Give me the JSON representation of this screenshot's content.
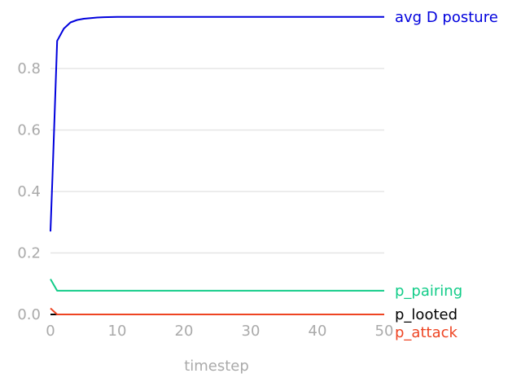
{
  "chart_data": {
    "type": "line",
    "title": "",
    "xlabel": "timestep",
    "ylabel": "",
    "xlim": [
      0,
      50
    ],
    "ylim": [
      0,
      0.97
    ],
    "xticks": [
      "0",
      "10",
      "20",
      "30",
      "40",
      "50"
    ],
    "yticks": [
      "0.0",
      "0.2",
      "0.4",
      "0.6",
      "0.8"
    ],
    "grid": "horizontal",
    "legend": "labels at right end of each line",
    "series": [
      {
        "name": "avg D posture",
        "color": "#0000dd",
        "x": [
          0,
          0.3,
          1,
          2,
          3,
          4,
          5,
          6,
          7,
          8,
          10,
          15,
          20,
          30,
          40,
          50
        ],
        "y": [
          0.27,
          0.45,
          0.89,
          0.93,
          0.95,
          0.958,
          0.962,
          0.964,
          0.966,
          0.967,
          0.968,
          0.968,
          0.968,
          0.968,
          0.968,
          0.968
        ]
      },
      {
        "name": "p_pairing",
        "color": "#11cc88",
        "x": [
          0,
          1,
          2,
          5,
          10,
          20,
          30,
          40,
          50
        ],
        "y": [
          0.115,
          0.077,
          0.077,
          0.077,
          0.077,
          0.077,
          0.077,
          0.077,
          0.077
        ]
      },
      {
        "name": "p_looted",
        "color": "#000000",
        "x": [
          0,
          1,
          10,
          20,
          30,
          40,
          50
        ],
        "y": [
          0.0,
          0.0,
          0.0,
          0.0,
          0.0,
          0.0,
          0.0
        ]
      },
      {
        "name": "p_attack",
        "color": "#ee4422",
        "x": [
          0,
          1,
          2,
          10,
          20,
          30,
          40,
          50
        ],
        "y": [
          0.02,
          0.0,
          0.0,
          0.0,
          0.0,
          0.0,
          0.0,
          0.0
        ]
      }
    ]
  }
}
